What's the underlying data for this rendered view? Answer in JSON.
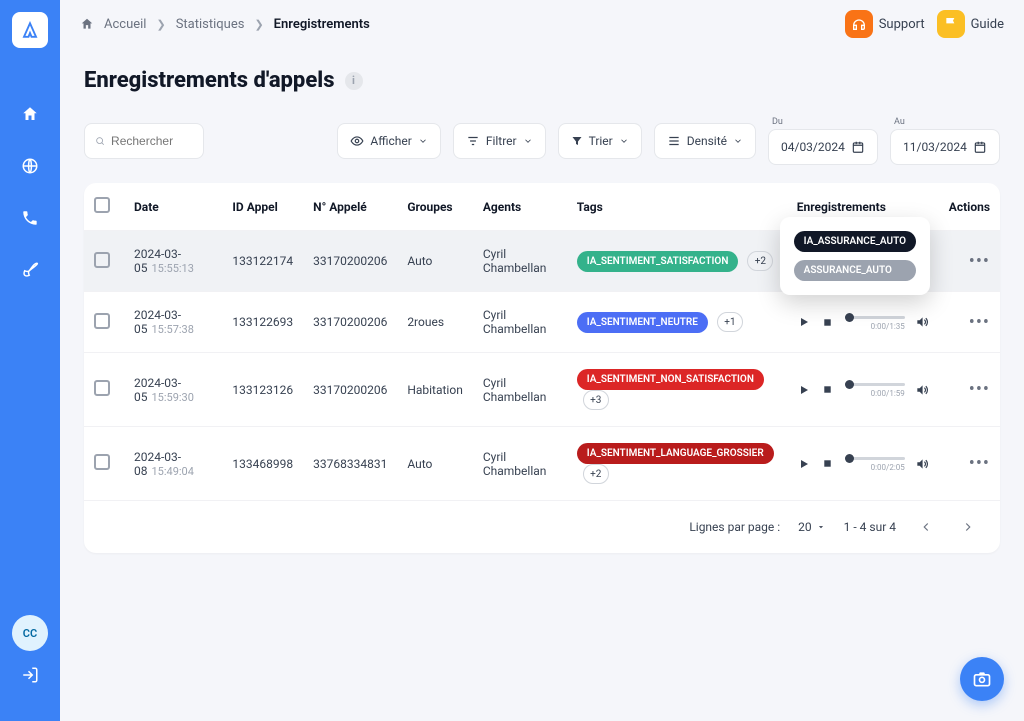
{
  "breadcrumb": {
    "home": "Accueil",
    "stats": "Statistiques",
    "current": "Enregistrements"
  },
  "topbar": {
    "support": "Support",
    "guide": "Guide"
  },
  "page": {
    "title": "Enregistrements d'appels"
  },
  "avatar": "CC",
  "search": {
    "placeholder": "Rechercher"
  },
  "toolbar": {
    "afficher": "Afficher",
    "filtrer": "Filtrer",
    "trier": "Trier",
    "densite": "Densité"
  },
  "dates": {
    "from_label": "Du",
    "from": "04/03/2024",
    "to_label": "Au",
    "to": "11/03/2024"
  },
  "columns": {
    "date": "Date",
    "id": "ID Appel",
    "num": "N° Appelé",
    "groupes": "Groupes",
    "agents": "Agents",
    "tags": "Tags",
    "enr": "Enregistrements",
    "actions": "Actions"
  },
  "rows": [
    {
      "date": "2024-03-05",
      "time": "15:55:13",
      "id": "133122174",
      "num": "33170200206",
      "groupe": "Auto",
      "agent": "Cyril Chambellan",
      "tag": "IA_SENTIMENT_SATISFACTION",
      "tag_class": "green",
      "plus": "+2",
      "duration": ""
    },
    {
      "date": "2024-03-05",
      "time": "15:57:38",
      "id": "133122693",
      "num": "33170200206",
      "groupe": "2roues",
      "agent": "Cyril Chambellan",
      "tag": "IA_SENTIMENT_NEUTRE",
      "tag_class": "blue",
      "plus": "+1",
      "duration": "0:00/1:35"
    },
    {
      "date": "2024-03-05",
      "time": "15:59:30",
      "id": "133123126",
      "num": "33170200206",
      "groupe": "Habitation",
      "agent": "Cyril Chambellan",
      "tag": "IA_SENTIMENT_NON_SATISFACTION",
      "tag_class": "red",
      "plus": "+3",
      "duration": "0:00/1:59"
    },
    {
      "date": "2024-03-08",
      "time": "15:49:04",
      "id": "133468998",
      "num": "33768334831",
      "groupe": "Auto",
      "agent": "Cyril Chambellan",
      "tag": "IA_SENTIMENT_LANGUAGE_GROSSIER",
      "tag_class": "darkred",
      "plus": "+2",
      "duration": "0:00/2:05"
    }
  ],
  "popover": {
    "tag1": "IA_ASSURANCE_AUTO",
    "tag2": "ASSURANCE_AUTO"
  },
  "footer": {
    "rpp_label": "Lignes par page :",
    "rpp": "20",
    "range": "1 - 4 sur 4"
  }
}
